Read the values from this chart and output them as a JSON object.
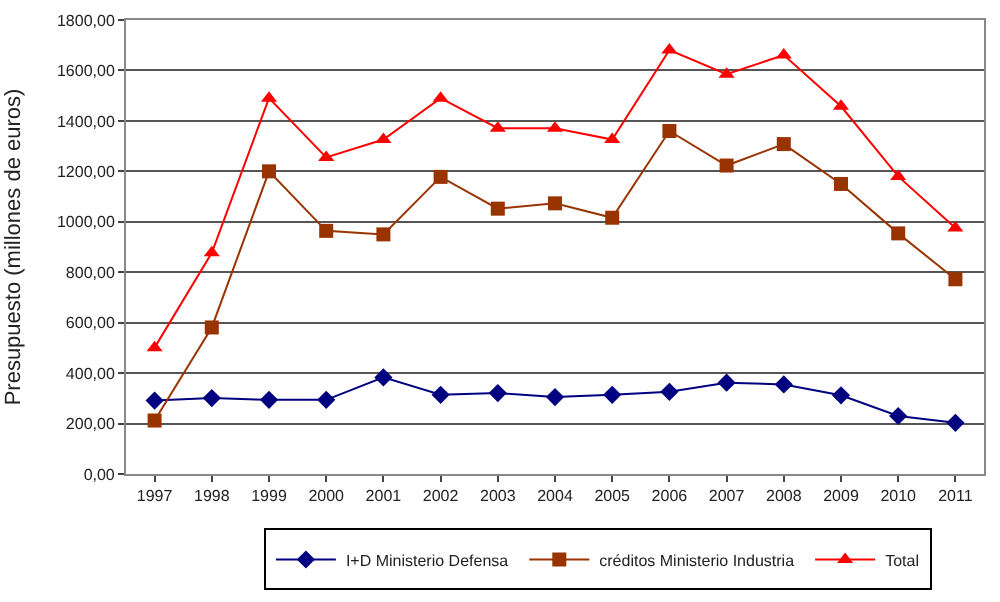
{
  "chart_data": {
    "type": "line",
    "ylabel": "Presupuesto (millones de euros)",
    "categories": [
      "1997",
      "1998",
      "1999",
      "2000",
      "2001",
      "2002",
      "2003",
      "2004",
      "2005",
      "2006",
      "2007",
      "2008",
      "2009",
      "2010",
      "2011"
    ],
    "series": [
      {
        "name": "I+D Ministerio Defensa",
        "color": "#000080",
        "marker": "diamond",
        "values": [
          291,
          301,
          294,
          294,
          383,
          314,
          321,
          305,
          314,
          326,
          362,
          355,
          312,
          230,
          203
        ]
      },
      {
        "name": "créditos Ministerio Industria",
        "color": "#993300",
        "marker": "square",
        "values": [
          212,
          581,
          1200,
          964,
          950,
          1178,
          1052,
          1073,
          1016,
          1360,
          1223,
          1308,
          1150,
          954,
          772
        ]
      },
      {
        "name": "Total",
        "color": "#ff0000",
        "marker": "triangle",
        "values": [
          501,
          877,
          1490,
          1255,
          1326,
          1490,
          1371,
          1371,
          1326,
          1681,
          1585,
          1661,
          1458,
          1180,
          975
        ]
      }
    ],
    "ylim": [
      0,
      1800
    ],
    "yticks": [
      {
        "value": 0,
        "label": "0,00"
      },
      {
        "value": 200,
        "label": "200,00"
      },
      {
        "value": 400,
        "label": "400,00"
      },
      {
        "value": 600,
        "label": "600,00"
      },
      {
        "value": 800,
        "label": "800,00"
      },
      {
        "value": 1000,
        "label": "1000,00"
      },
      {
        "value": 1200,
        "label": "1200,00"
      },
      {
        "value": 1400,
        "label": "1400,00"
      },
      {
        "value": 1600,
        "label": "1600,00"
      },
      {
        "value": 1800,
        "label": "1800,00"
      }
    ],
    "grid": "y",
    "legend": "bottom",
    "line_style": "solid"
  }
}
